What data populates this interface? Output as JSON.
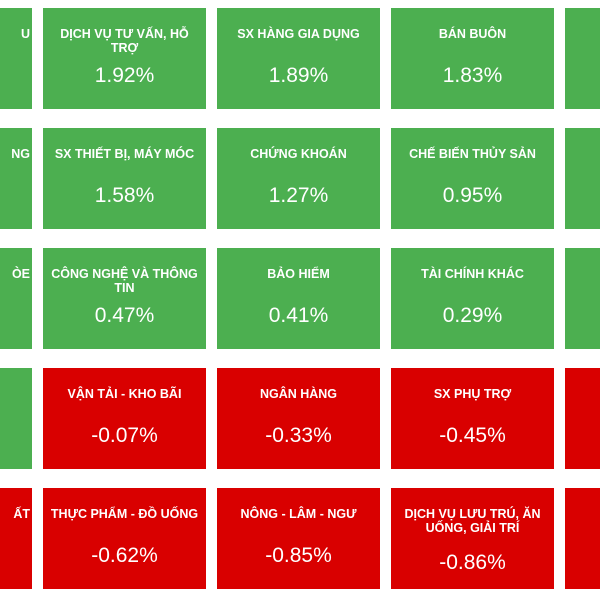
{
  "colors": {
    "up": "#4caf50",
    "down": "#d90000",
    "background": "#ffffff"
  },
  "partial_left": [
    {
      "name_fragment": "U",
      "direction": "up"
    },
    {
      "name_fragment": "NG",
      "direction": "up"
    },
    {
      "name_fragment": "ÒE",
      "direction": "up"
    },
    {
      "name_fragment": "",
      "direction": "up"
    },
    {
      "name_fragment": "ẤT",
      "direction": "down"
    }
  ],
  "rows": [
    [
      {
        "name": "DỊCH VỤ TƯ VẤN, HỖ TRỢ",
        "value": "1.92%",
        "direction": "up"
      },
      {
        "name": "SX HÀNG GIA DỤNG",
        "value": "1.89%",
        "direction": "up"
      },
      {
        "name": "BÁN BUÔN",
        "value": "1.83%",
        "direction": "up"
      }
    ],
    [
      {
        "name": "SX THIẾT BỊ, MÁY MÓC",
        "value": "1.58%",
        "direction": "up"
      },
      {
        "name": "CHỨNG KHOÁN",
        "value": "1.27%",
        "direction": "up"
      },
      {
        "name": "CHẾ BIẾN THỦY SẢN",
        "value": "0.95%",
        "direction": "up"
      }
    ],
    [
      {
        "name": "CÔNG NGHỆ VÀ THÔNG TIN",
        "value": "0.47%",
        "direction": "up"
      },
      {
        "name": "BẢO HIỂM",
        "value": "0.41%",
        "direction": "up"
      },
      {
        "name": "TÀI CHÍNH KHÁC",
        "value": "0.29%",
        "direction": "up"
      }
    ],
    [
      {
        "name": "VẬN TẢI - KHO BÃI",
        "value": "-0.07%",
        "direction": "down"
      },
      {
        "name": "NGÂN HÀNG",
        "value": "-0.33%",
        "direction": "down"
      },
      {
        "name": "SX PHỤ TRỢ",
        "value": "-0.45%",
        "direction": "down"
      }
    ],
    [
      {
        "name": "THỰC PHẨM - ĐỒ UỐNG",
        "value": "-0.62%",
        "direction": "down"
      },
      {
        "name": "NÔNG - LÂM - NGƯ",
        "value": "-0.85%",
        "direction": "down"
      },
      {
        "name": "DỊCH VỤ LƯU TRÚ, ĂN UỐNG, GIẢI TRÍ",
        "value": "-0.86%",
        "direction": "down"
      }
    ]
  ],
  "partial_right": [
    {
      "direction": "up"
    },
    {
      "direction": "up"
    },
    {
      "direction": "up"
    },
    {
      "direction": "down"
    },
    {
      "direction": "down"
    }
  ]
}
